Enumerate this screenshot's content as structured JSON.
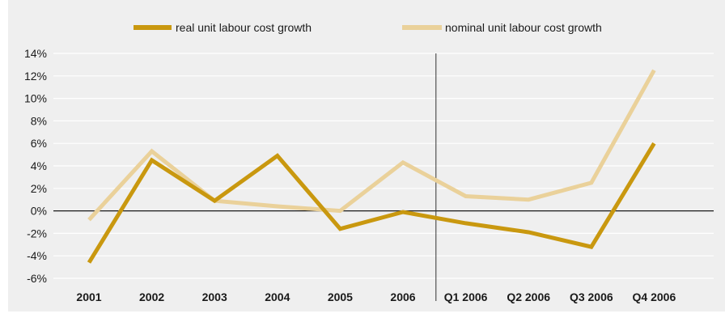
{
  "chart_data": {
    "type": "line",
    "categories": [
      "2001",
      "2002",
      "2003",
      "2004",
      "2005",
      "2006",
      "Q1 2006",
      "Q2 2006",
      "Q3 2006",
      "Q4 2006"
    ],
    "series": [
      {
        "name": "real unit labour cost growth",
        "color": "#c9980f",
        "values": [
          -4.6,
          4.5,
          0.9,
          4.9,
          -1.6,
          -0.1,
          -1.1,
          -1.9,
          -3.2,
          6.0
        ]
      },
      {
        "name": "nominal unit labour cost growth",
        "color": "#ead19a",
        "values": [
          -0.8,
          5.3,
          0.9,
          0.4,
          0.0,
          4.3,
          1.3,
          1.0,
          2.5,
          12.5
        ]
      }
    ],
    "ylim": [
      -6,
      14
    ],
    "yticks": [
      "14%",
      "12%",
      "10%",
      "8%",
      "6%",
      "4%",
      "2%",
      "0%",
      "-2%",
      "-4%",
      "-6%"
    ],
    "ytick_values": [
      14,
      12,
      10,
      8,
      6,
      4,
      2,
      0,
      -2,
      -4,
      -6
    ],
    "grid": true,
    "legend_position": "top",
    "separator_after": "2006",
    "title": "",
    "xlabel": "",
    "ylabel": ""
  }
}
